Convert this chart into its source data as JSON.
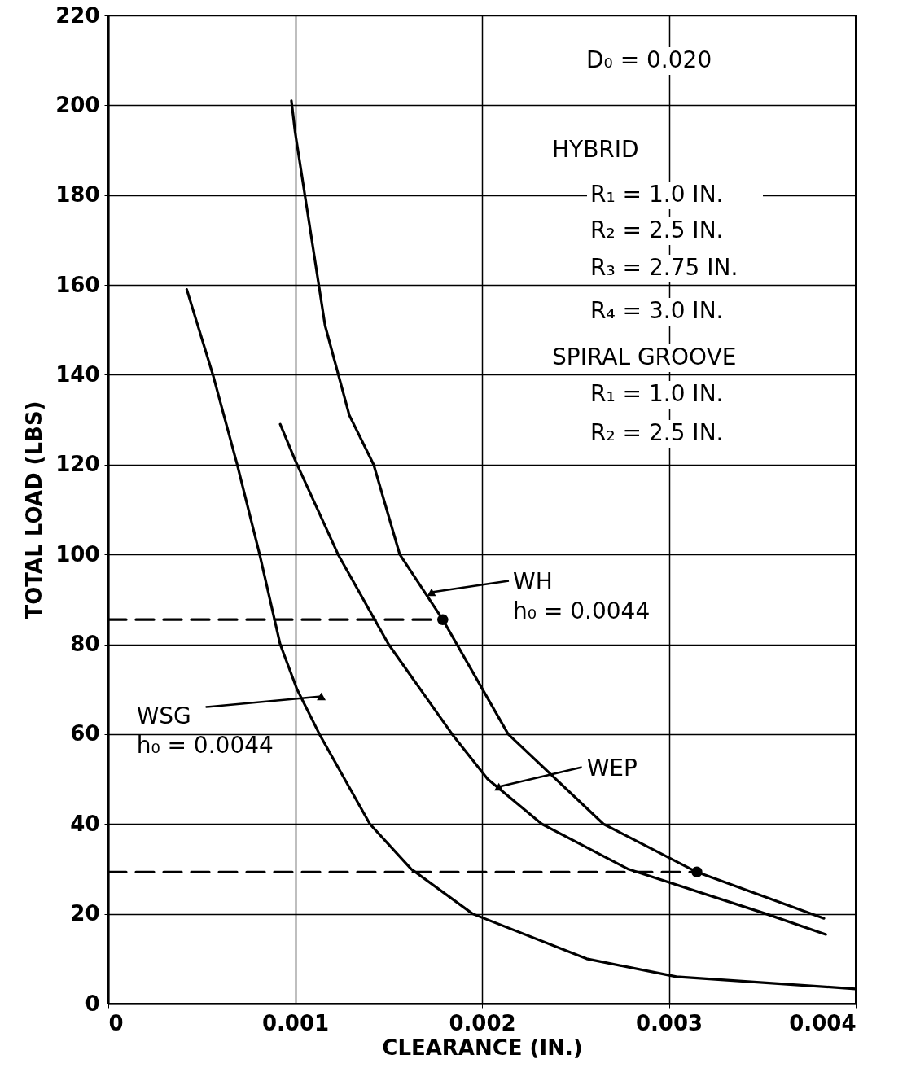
{
  "chart_data": {
    "type": "line",
    "xlabel": "CLEARANCE  (IN.)",
    "ylabel": "TOTAL  LOAD  (LBS)",
    "xlim": [
      0,
      0.004
    ],
    "xticks": [
      0,
      0.001,
      0.002,
      0.003,
      0.004
    ],
    "ylim": [
      0,
      220
    ],
    "yticks": [
      0,
      20,
      40,
      60,
      80,
      100,
      120,
      140,
      160,
      180,
      200,
      220
    ],
    "grid": true,
    "series": [
      {
        "color": "#000000",
        "x": [
          0.00098,
          0.001,
          0.00116,
          0.00129,
          0.00142,
          0.00156,
          0.00179,
          0.00214,
          0.00265,
          0.00315,
          0.00383
        ],
        "values": [
          201,
          194,
          151,
          131,
          120,
          100,
          85.5,
          60,
          40,
          29.3,
          19
        ]
      },
      {
        "color": "#000000",
        "x": [
          0.00092,
          0.001,
          0.00123,
          0.0015,
          0.00184,
          0.00203,
          0.00232,
          0.00278,
          0.00352,
          0.00384
        ],
        "values": [
          129,
          121,
          100,
          80,
          60,
          50,
          40,
          30,
          20,
          15.4
        ]
      },
      {
        "color": "#000000",
        "x": [
          0.00042,
          0.00056,
          0.00069,
          0.00081,
          0.00092,
          0.00101,
          0.00113,
          0.0014,
          0.00162,
          0.00195,
          0.00256,
          0.00304,
          0.004
        ],
        "values": [
          159,
          140,
          120,
          100,
          80,
          70,
          60,
          40,
          30,
          20,
          10,
          6,
          3.3
        ]
      },
      {
        "color": "#000000",
        "line_style": "dashed",
        "x": [
          0,
          0.00179
        ],
        "values": [
          85.5,
          85.5
        ]
      },
      {
        "color": "#000000",
        "line_style": "dashed",
        "x": [
          0,
          0.00315
        ],
        "values": [
          29.3,
          29.3
        ]
      },
      {
        "type": "scatter",
        "marker": "circle",
        "color": "#000000",
        "x": [
          0.00179,
          0.00315
        ],
        "values": [
          85.5,
          29.3
        ]
      }
    ],
    "annotations": [
      "D₀ = 0.020",
      "HYBRID",
      "R₁ = 1.0 IN.",
      "R₂ = 2.5 IN.",
      "R₃ = 2.75 IN.",
      "R₄ = 3.0 IN.",
      "SPIRAL  GROOVE",
      "R₁ = 1.0 IN.",
      "R₂ = 2.5 IN.",
      {
        "text": "WH\nh₀ = 0.0044",
        "x": 0.00173,
        "y": 91.6
      },
      {
        "text": "WEP",
        "x": 0.00209,
        "y": 48.3
      },
      {
        "text": "WSG\nh₀ = 0.0044",
        "x": 0.00114,
        "y": 68.4
      }
    ]
  }
}
